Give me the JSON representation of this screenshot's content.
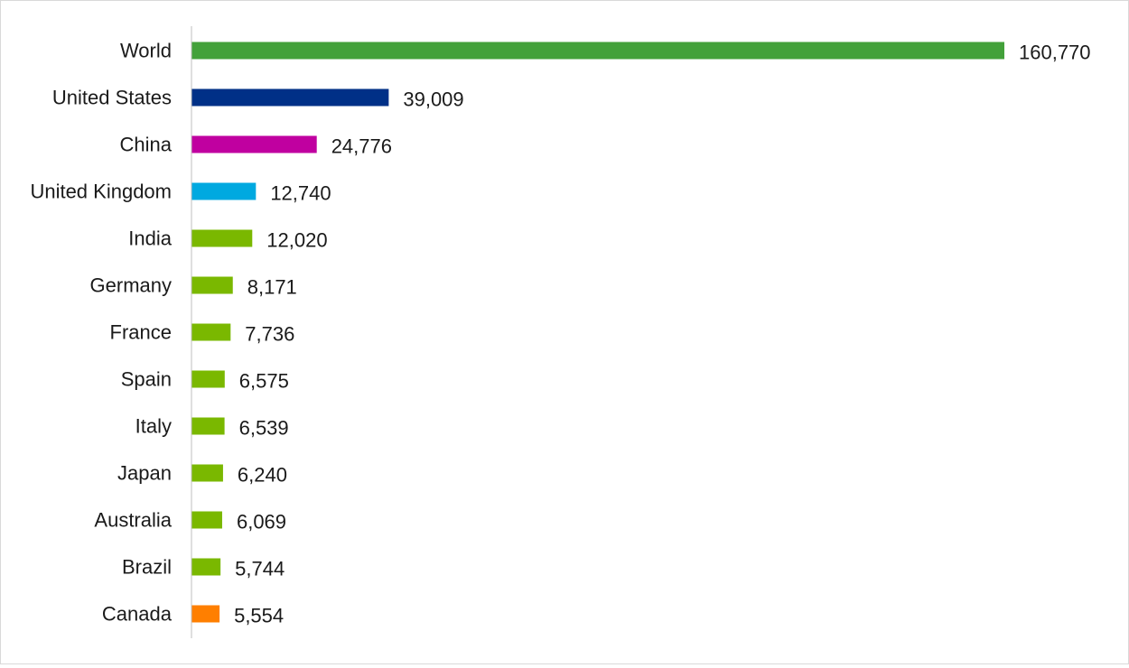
{
  "chart_data": {
    "type": "bar",
    "orientation": "horizontal",
    "categories": [
      "World",
      "United States",
      "China",
      "United Kingdom",
      "India",
      "Germany",
      "France",
      "Spain",
      "Italy",
      "Japan",
      "Australia",
      "Brazil",
      "Canada"
    ],
    "values": [
      160770,
      39009,
      24776,
      12740,
      12020,
      8171,
      7736,
      6575,
      6539,
      6240,
      6069,
      5744,
      5554
    ],
    "value_labels": [
      "160,770",
      "39,009",
      "24,776",
      "12,740",
      "12,020",
      "8,171",
      "7,736",
      "6,575",
      "6,539",
      "6,240",
      "6,069",
      "5,744",
      "5,554"
    ],
    "colors": [
      "#43a13a",
      "#003087",
      "#c000a0",
      "#00a9e0",
      "#7ab800",
      "#7ab800",
      "#7ab800",
      "#7ab800",
      "#7ab800",
      "#7ab800",
      "#7ab800",
      "#7ab800",
      "#ff7f00"
    ],
    "title": "",
    "xlabel": "",
    "ylabel": "",
    "xlim": [
      0,
      160770
    ],
    "grid": false,
    "legend": "none",
    "data_labels": "outside-end"
  }
}
